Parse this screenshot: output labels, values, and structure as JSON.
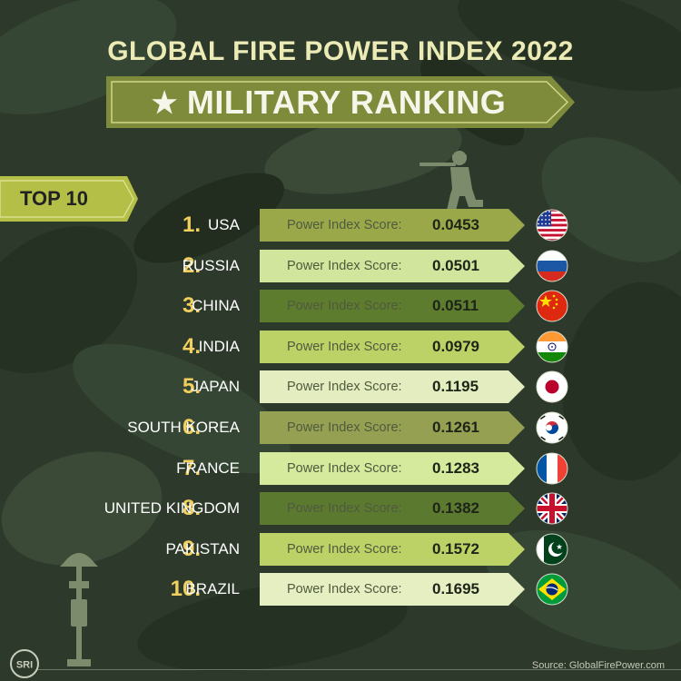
{
  "header": {
    "title": "GLOBAL FIRE POWER INDEX 2022",
    "subtitle": "MILITARY RANKING",
    "star_glyph": "★"
  },
  "top_label": "TOP 10",
  "score_label": "Power Index Score:",
  "rankings": [
    {
      "rank": "1.",
      "country": "USA",
      "score": "0.0453",
      "flag": "usa-flag-icon"
    },
    {
      "rank": "2.",
      "country": "RUSSIA",
      "score": "0.0501",
      "flag": "russia-flag-icon"
    },
    {
      "rank": "3.",
      "country": "CHINA",
      "score": "0.0511",
      "flag": "china-flag-icon"
    },
    {
      "rank": "4.",
      "country": "INDIA",
      "score": "0.0979",
      "flag": "india-flag-icon"
    },
    {
      "rank": "5.",
      "country": "JAPAN",
      "score": "0.1195",
      "flag": "japan-flag-icon"
    },
    {
      "rank": "6.",
      "country": "SOUTH KOREA",
      "score": "0.1261",
      "flag": "south-korea-flag-icon"
    },
    {
      "rank": "7.",
      "country": "FRANCE",
      "score": "0.1283",
      "flag": "france-flag-icon"
    },
    {
      "rank": "8.",
      "country": "UNITED KINGDOM",
      "score": "0.1382",
      "flag": "uk-flag-icon"
    },
    {
      "rank": "9.",
      "country": "PAKISTAN",
      "score": "0.1572",
      "flag": "pakistan-flag-icon"
    },
    {
      "rank": "10.",
      "country": "BRAZIL",
      "score": "0.1695",
      "flag": "brazil-flag-icon"
    }
  ],
  "footer": {
    "source": "Source:  GlobalFirePower.com",
    "logo": "SRI"
  },
  "colors": {
    "background": "#2d3a2b",
    "title": "#ecebb6",
    "banner": "#7e8b3a",
    "rank": "#f2d05f",
    "top10": "#b4bf48",
    "bar_fills": [
      "#9aa84a",
      "#d2e59c",
      "#5e7c2e",
      "#bcd266",
      "#e3edc0",
      "#96a052",
      "#d6ea9e",
      "#5b7a30",
      "#bcd266",
      "#e6efc2"
    ]
  }
}
